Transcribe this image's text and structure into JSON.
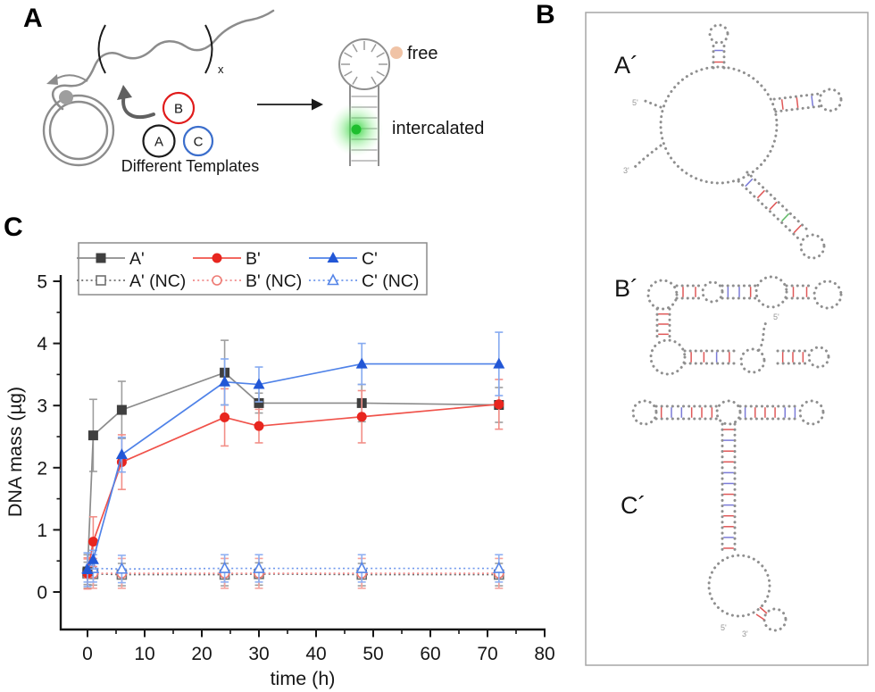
{
  "panel_a": {
    "label": "A",
    "repeat_subscript": "x",
    "templates": {
      "caption": "Different Templates",
      "circles": [
        {
          "label": "B",
          "color": "#e01b1b"
        },
        {
          "label": "A",
          "color": "#1a1a1a"
        },
        {
          "label": "C",
          "color": "#3b6ecc"
        }
      ]
    },
    "probe": {
      "free_label": "free",
      "intercalated_label": "intercalated",
      "free_dot_color": "#f0c3a6",
      "glow_color": "#2fd13c",
      "strand_color": "#8c8c8c"
    }
  },
  "panel_b": {
    "label": "B",
    "structures": [
      {
        "label": "A´"
      },
      {
        "label": "B´"
      },
      {
        "label": "C´"
      }
    ],
    "end_labels": {
      "five_prime": "5'",
      "three_prime": "3'"
    }
  },
  "panel_c": {
    "label": "C",
    "chart_data": {
      "type": "line",
      "title": "",
      "xlabel": "time (h)",
      "ylabel": "DNA mass (µg)",
      "x": [
        0,
        1,
        6,
        24,
        30,
        48,
        72
      ],
      "xlim": [
        -4.7,
        80
      ],
      "ylim": [
        -0.6,
        5.1
      ],
      "x_ticks": [
        0,
        10,
        20,
        30,
        40,
        50,
        60,
        70,
        80
      ],
      "x_minor_step": 5,
      "y_ticks": [
        0,
        1,
        2,
        3,
        4,
        5
      ],
      "y_minor_step": 0.5,
      "grid": false,
      "legend_position": "top-left",
      "series": [
        {
          "name": "A'",
          "marker": "square",
          "filled": true,
          "linestyle": "solid",
          "line_color": "#8c8c8c",
          "marker_color": "#3f3f3f",
          "error_color": "#9e9e9e",
          "values": [
            0.33,
            2.52,
            2.93,
            3.53,
            3.04,
            3.04,
            3.01
          ],
          "errors": [
            0.27,
            0.58,
            0.46,
            0.52,
            0.16,
            0.3,
            0.28
          ]
        },
        {
          "name": "B'",
          "marker": "circle",
          "filled": true,
          "linestyle": "solid",
          "line_color": "#f0524a",
          "marker_color": "#e8261f",
          "error_color": "#f28f88",
          "values": [
            0.3,
            0.81,
            2.09,
            2.81,
            2.67,
            2.82,
            3.02
          ],
          "errors": [
            0.25,
            0.4,
            0.44,
            0.46,
            0.27,
            0.42,
            0.4
          ]
        },
        {
          "name": "C'",
          "marker": "triangle",
          "filled": true,
          "linestyle": "solid",
          "line_color": "#4f82e8",
          "marker_color": "#2257d6",
          "error_color": "#86aaf0",
          "values": [
            0.36,
            0.52,
            2.21,
            3.38,
            3.34,
            3.67,
            3.67
          ],
          "errors": [
            0.27,
            0.15,
            0.28,
            0.37,
            0.28,
            0.33,
            0.51
          ]
        },
        {
          "name": "A' (NC)",
          "marker": "square",
          "filled": false,
          "linestyle": "dotted",
          "line_color": "#6f6f6f",
          "marker_color": "#6f6f6f",
          "error_color": "#9e9e9e",
          "values": [
            0.3,
            0.29,
            0.28,
            0.28,
            0.29,
            0.28,
            0.28
          ],
          "errors": [
            0.18,
            0.18,
            0.18,
            0.18,
            0.18,
            0.18,
            0.18
          ]
        },
        {
          "name": "B' (NC)",
          "marker": "circle",
          "filled": false,
          "linestyle": "dotted",
          "line_color": "#f08a8a",
          "marker_color": "#ee7b74",
          "error_color": "#f4a39e",
          "values": [
            0.29,
            0.3,
            0.3,
            0.3,
            0.3,
            0.3,
            0.3
          ],
          "errors": [
            0.24,
            0.24,
            0.24,
            0.24,
            0.24,
            0.24,
            0.24
          ]
        },
        {
          "name": "C' (NC)",
          "marker": "triangle",
          "filled": false,
          "linestyle": "dotted",
          "line_color": "#6f97ec",
          "marker_color": "#5585e8",
          "error_color": "#8fb0f2",
          "values": [
            0.38,
            0.38,
            0.37,
            0.38,
            0.38,
            0.38,
            0.38
          ],
          "errors": [
            0.22,
            0.22,
            0.22,
            0.22,
            0.22,
            0.22,
            0.22
          ]
        }
      ]
    }
  }
}
